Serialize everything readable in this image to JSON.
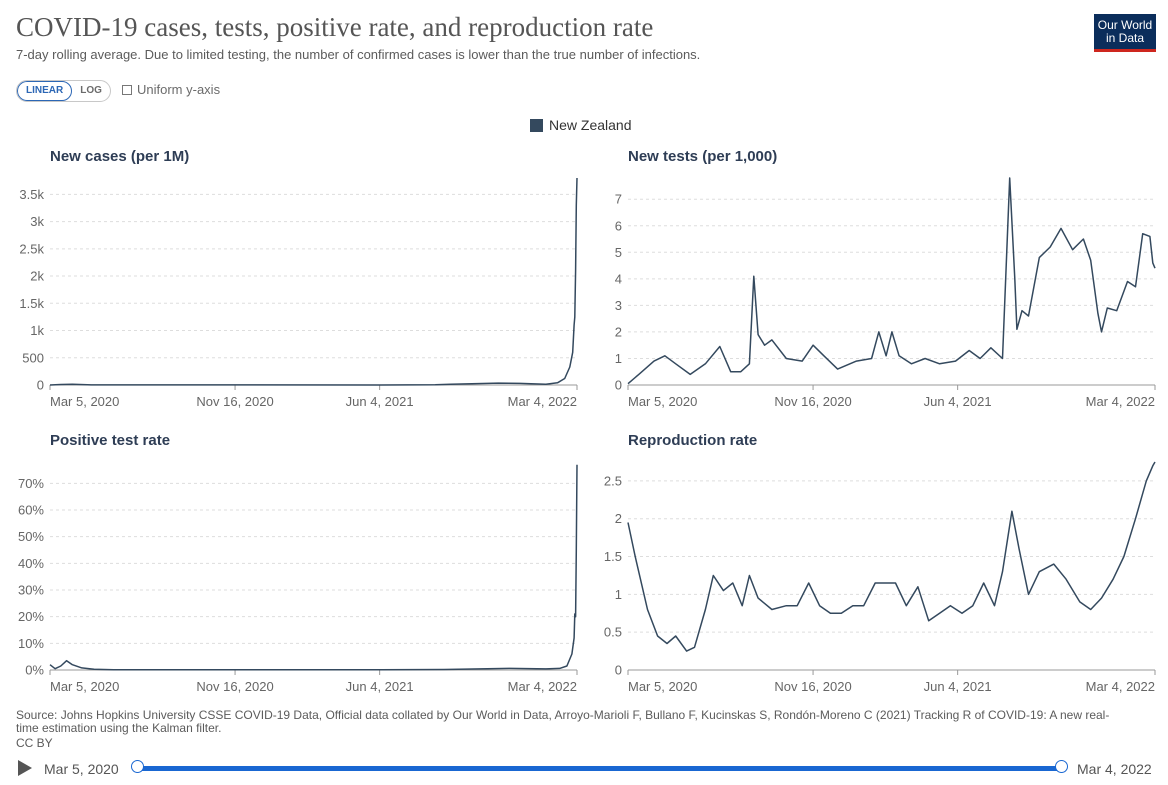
{
  "header": {
    "title": "COVID-19 cases, tests, positive rate, and reproduction rate",
    "subtitle": "7-day rolling average. Due to limited testing, the number of confirmed cases is lower than the true number of infections.",
    "logo_line1": "Our World",
    "logo_line2": "in Data"
  },
  "controls": {
    "linear_label": "LINEAR",
    "log_label": "LOG",
    "uniform_label": "Uniform y-axis"
  },
  "legend": {
    "label": "New Zealand",
    "color": "#34495e"
  },
  "chart_data": [
    {
      "type": "line",
      "title": "New cases (per 1M)",
      "x_ticks": [
        "Mar 5, 2020",
        "Nov 16, 2020",
        "Jun 4, 2021",
        "Mar 4, 2022"
      ],
      "y_ticks": [
        "0",
        "500",
        "1k",
        "1.5k",
        "2k",
        "2.5k",
        "3k",
        "3.5k"
      ],
      "y_tick_values": [
        0,
        500,
        1000,
        1500,
        2000,
        2500,
        3000,
        3500
      ],
      "ylim": [
        0,
        3800
      ],
      "grid": true,
      "series": [
        {
          "name": "New Zealand",
          "x": [
            "2020-03-05",
            "2020-03-20",
            "2020-04-05",
            "2020-05-01",
            "2020-08-01",
            "2020-11-16",
            "2021-06-04",
            "2021-08-20",
            "2021-09-10",
            "2021-11-15",
            "2021-12-15",
            "2022-01-20",
            "2022-02-05",
            "2022-02-15",
            "2022-02-22",
            "2022-02-26",
            "2022-02-28",
            "2022-03-01",
            "2022-03-02",
            "2022-03-03",
            "2022-03-04"
          ],
          "values": [
            0,
            10,
            15,
            2,
            1,
            1,
            0,
            5,
            15,
            35,
            30,
            15,
            40,
            120,
            330,
            600,
            1100,
            1250,
            2100,
            3300,
            3800
          ]
        }
      ]
    },
    {
      "type": "line",
      "title": "New tests (per 1,000)",
      "x_ticks": [
        "Mar 5, 2020",
        "Nov 16, 2020",
        "Jun 4, 2021",
        "Mar 4, 2022"
      ],
      "y_ticks": [
        "0",
        "1",
        "2",
        "3",
        "4",
        "5",
        "6",
        "7"
      ],
      "y_tick_values": [
        0,
        1,
        2,
        3,
        4,
        5,
        6,
        7
      ],
      "ylim": [
        0,
        7.8
      ],
      "grid": true,
      "series": [
        {
          "name": "New Zealand",
          "x": [
            "2020-03-05",
            "2020-03-20",
            "2020-04-10",
            "2020-04-25",
            "2020-05-10",
            "2020-05-30",
            "2020-06-20",
            "2020-07-10",
            "2020-07-25",
            "2020-08-08",
            "2020-08-20",
            "2020-08-26",
            "2020-09-01",
            "2020-09-10",
            "2020-09-20",
            "2020-10-10",
            "2020-11-01",
            "2020-11-16",
            "2020-12-01",
            "2020-12-20",
            "2021-01-15",
            "2021-02-05",
            "2021-02-15",
            "2021-02-25",
            "2021-03-05",
            "2021-03-15",
            "2021-04-01",
            "2021-04-20",
            "2021-05-10",
            "2021-06-01",
            "2021-06-20",
            "2021-07-05",
            "2021-07-20",
            "2021-08-05",
            "2021-08-15",
            "2021-08-22",
            "2021-08-25",
            "2021-09-01",
            "2021-09-10",
            "2021-09-25",
            "2021-10-10",
            "2021-10-25",
            "2021-11-10",
            "2021-11-25",
            "2021-12-05",
            "2021-12-15",
            "2021-12-20",
            "2021-12-28",
            "2022-01-10",
            "2022-01-25",
            "2022-02-05",
            "2022-02-15",
            "2022-02-25",
            "2022-03-01",
            "2022-03-04"
          ],
          "values": [
            0.05,
            0.4,
            0.9,
            1.1,
            0.8,
            0.4,
            0.8,
            1.45,
            0.5,
            0.5,
            0.8,
            4.1,
            1.9,
            1.5,
            1.7,
            1.0,
            0.9,
            1.5,
            1.1,
            0.6,
            0.9,
            1.0,
            2.0,
            1.1,
            2.0,
            1.1,
            0.8,
            1.0,
            0.8,
            0.9,
            1.3,
            1.0,
            1.4,
            1.0,
            7.8,
            4.0,
            2.1,
            2.8,
            2.6,
            4.8,
            5.2,
            5.9,
            5.1,
            5.5,
            4.7,
            2.7,
            2.0,
            2.9,
            2.8,
            3.9,
            3.7,
            5.7,
            5.6,
            4.6,
            4.4
          ]
        }
      ]
    },
    {
      "type": "line",
      "title": "Positive test rate",
      "x_ticks": [
        "Mar 5, 2020",
        "Nov 16, 2020",
        "Jun 4, 2021",
        "Mar 4, 2022"
      ],
      "y_ticks": [
        "0%",
        "10%",
        "20%",
        "30%",
        "40%",
        "50%",
        "60%",
        "70%"
      ],
      "y_tick_values": [
        0,
        10,
        20,
        30,
        40,
        50,
        60,
        70
      ],
      "ylim": [
        0,
        78
      ],
      "grid": true,
      "series": [
        {
          "name": "New Zealand",
          "x": [
            "2020-03-05",
            "2020-03-12",
            "2020-03-20",
            "2020-03-28",
            "2020-04-05",
            "2020-04-18",
            "2020-05-05",
            "2020-06-01",
            "2020-11-16",
            "2021-06-04",
            "2021-09-01",
            "2021-12-01",
            "2022-01-20",
            "2022-02-08",
            "2022-02-18",
            "2022-02-25",
            "2022-02-28",
            "2022-03-01",
            "2022-03-02",
            "2022-03-03",
            "2022-03-04"
          ],
          "values": [
            2,
            0.5,
            1.5,
            3.5,
            2,
            0.8,
            0.3,
            0.1,
            0.1,
            0.1,
            0.2,
            0.6,
            0.4,
            0.6,
            1.5,
            6,
            12,
            21,
            20,
            45,
            77
          ]
        }
      ]
    },
    {
      "type": "line",
      "title": "Reproduction rate",
      "x_ticks": [
        "Mar 5, 2020",
        "Nov 16, 2020",
        "Jun 4, 2021",
        "Mar 4, 2022"
      ],
      "y_ticks": [
        "0",
        "0.5",
        "1",
        "1.5",
        "2",
        "2.5"
      ],
      "y_tick_values": [
        0,
        0.5,
        1,
        1.5,
        2,
        2.5
      ],
      "ylim": [
        0,
        2.75
      ],
      "grid": true,
      "series": [
        {
          "name": "New Zealand",
          "x": [
            "2020-03-05",
            "2020-03-15",
            "2020-04-01",
            "2020-04-15",
            "2020-04-28",
            "2020-05-10",
            "2020-05-25",
            "2020-06-05",
            "2020-06-20",
            "2020-07-01",
            "2020-07-15",
            "2020-07-28",
            "2020-08-10",
            "2020-08-20",
            "2020-09-01",
            "2020-09-20",
            "2020-10-10",
            "2020-10-25",
            "2020-11-10",
            "2020-11-25",
            "2020-12-10",
            "2020-12-25",
            "2021-01-10",
            "2021-01-25",
            "2021-02-10",
            "2021-02-25",
            "2021-03-10",
            "2021-03-25",
            "2021-04-10",
            "2021-04-25",
            "2021-05-10",
            "2021-05-25",
            "2021-06-10",
            "2021-06-25",
            "2021-07-10",
            "2021-07-25",
            "2021-08-05",
            "2021-08-18",
            "2021-08-28",
            "2021-09-10",
            "2021-09-25",
            "2021-10-15",
            "2021-11-01",
            "2021-11-20",
            "2021-12-05",
            "2021-12-20",
            "2022-01-05",
            "2022-01-20",
            "2022-02-05",
            "2022-02-20",
            "2022-03-01",
            "2022-03-04"
          ],
          "values": [
            1.95,
            1.5,
            0.8,
            0.45,
            0.35,
            0.45,
            0.25,
            0.3,
            0.8,
            1.25,
            1.05,
            1.15,
            0.85,
            1.25,
            0.95,
            0.8,
            0.85,
            0.85,
            1.15,
            0.85,
            0.75,
            0.75,
            0.85,
            0.85,
            1.15,
            1.15,
            1.15,
            0.85,
            1.1,
            0.65,
            0.75,
            0.85,
            0.75,
            0.85,
            1.15,
            0.85,
            1.3,
            2.1,
            1.6,
            1.0,
            1.3,
            1.4,
            1.2,
            0.9,
            0.8,
            0.95,
            1.2,
            1.5,
            2.0,
            2.5,
            2.7,
            2.75
          ]
        }
      ]
    }
  ],
  "footer": {
    "source": "Source: Johns Hopkins University CSSE COVID-19 Data, Official data collated by Our World in Data, Arroyo-Marioli F, Bullano F, Kucinskas S, Rondón-Moreno C (2021) Tracking R of COVID-19: A new real-time estimation using the Kalman filter.",
    "license": "CC BY"
  },
  "timeline": {
    "start_label": "Mar 5, 2020",
    "end_label": "Mar 4, 2022",
    "accent": "#1967d2"
  }
}
